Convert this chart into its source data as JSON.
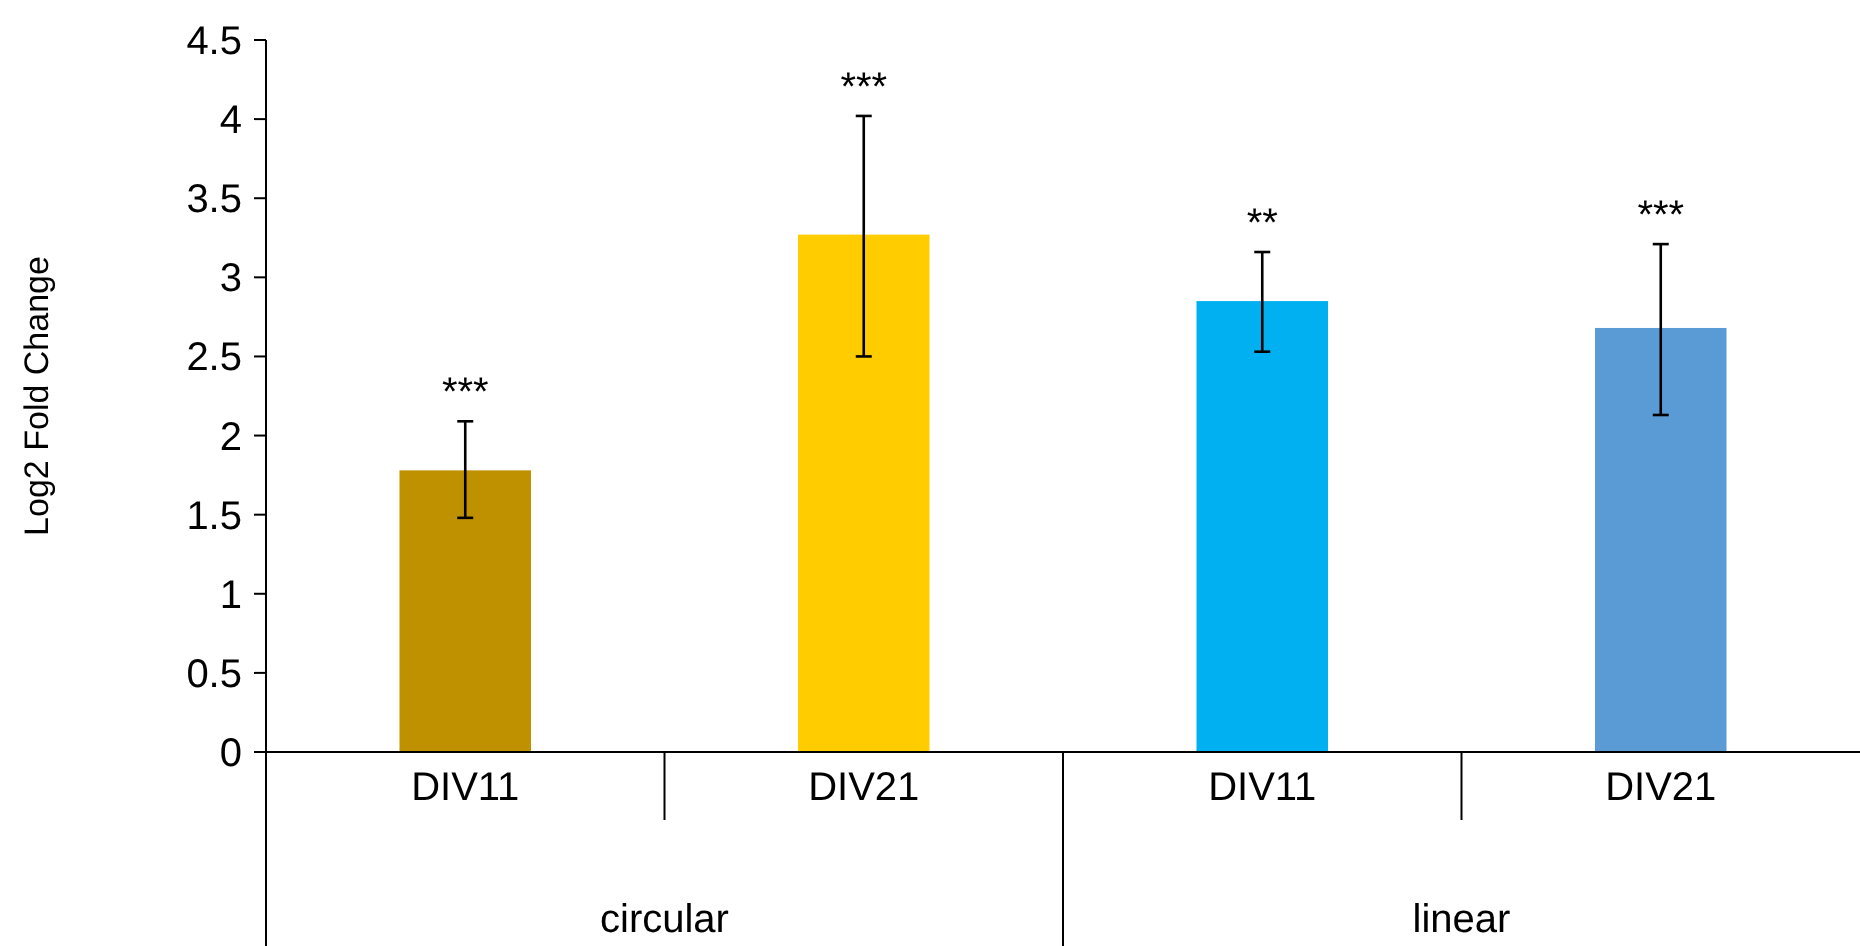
{
  "chart_data": {
    "type": "bar",
    "ylabel": "Log2 Fold Change",
    "categories": [
      "DIV11",
      "DIV21",
      "DIV11",
      "DIV21"
    ],
    "values": [
      1.78,
      3.27,
      2.85,
      2.68
    ],
    "colors": [
      "#bf9000",
      "#ffcc00",
      "#00b0f0",
      "#5b9bd5"
    ],
    "errors": [
      [
        1.48,
        2.09
      ],
      [
        2.5,
        4.02
      ],
      [
        2.53,
        3.16
      ],
      [
        2.13,
        3.21
      ]
    ],
    "ylim": [
      0,
      4.5
    ],
    "yticks": [
      0,
      0.5,
      1,
      1.5,
      2,
      2.5,
      3,
      3.5,
      4,
      4.5
    ],
    "annotations": [
      "***",
      "***",
      "**",
      "***",
      "circular",
      "linear"
    ],
    "grid": false
  }
}
